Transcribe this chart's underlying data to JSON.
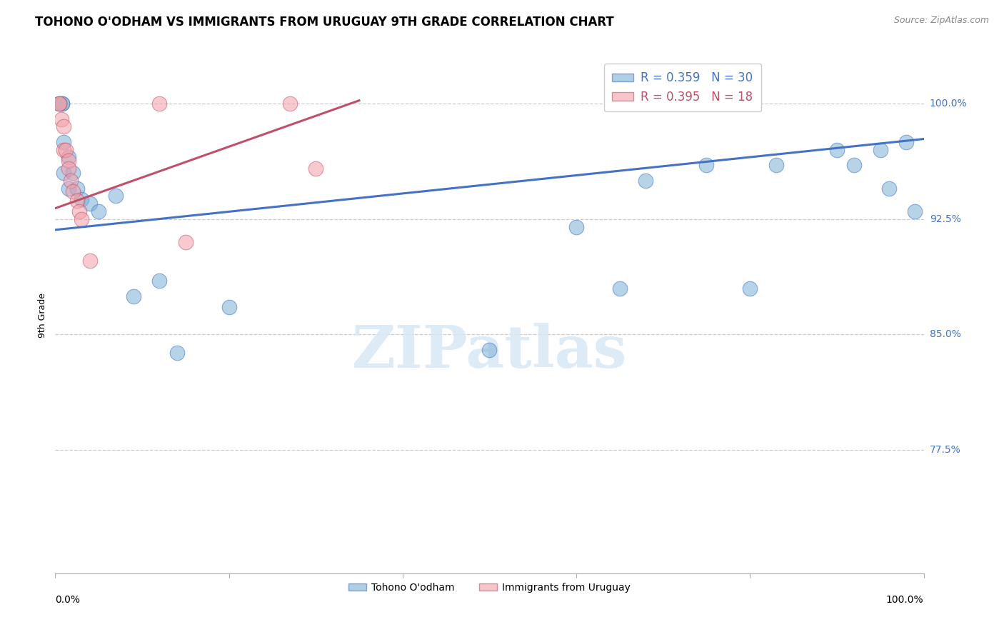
{
  "title": "TOHONO O'ODHAM VS IMMIGRANTS FROM URUGUAY 9TH GRADE CORRELATION CHART",
  "source": "Source: ZipAtlas.com",
  "ylabel": "9th Grade",
  "ytick_labels": [
    "77.5%",
    "85.0%",
    "92.5%",
    "100.0%"
  ],
  "ytick_values": [
    0.775,
    0.85,
    0.925,
    1.0
  ],
  "xlim": [
    0.0,
    1.0
  ],
  "ylim": [
    0.695,
    1.03
  ],
  "blue_color": "#7BAFD4",
  "pink_color": "#F4A0A8",
  "blue_line_color": "#4472C4",
  "pink_line_color": "#C0506A",
  "legend_blue_r": 0.359,
  "legend_blue_n": 30,
  "legend_pink_r": 0.395,
  "legend_pink_n": 18,
  "tohono_x": [
    0.005,
    0.008,
    0.008,
    0.01,
    0.01,
    0.015,
    0.015,
    0.02,
    0.025,
    0.03,
    0.04,
    0.05,
    0.07,
    0.09,
    0.12,
    0.14,
    0.2,
    0.5,
    0.6,
    0.65,
    0.68,
    0.75,
    0.8,
    0.83,
    0.9,
    0.92,
    0.95,
    0.96,
    0.98,
    0.99
  ],
  "tohono_y": [
    1.0,
    1.0,
    1.0,
    0.975,
    0.955,
    0.965,
    0.945,
    0.955,
    0.945,
    0.938,
    0.935,
    0.93,
    0.94,
    0.875,
    0.885,
    0.838,
    0.868,
    0.84,
    0.92,
    0.88,
    0.95,
    0.96,
    0.88,
    0.96,
    0.97,
    0.96,
    0.97,
    0.945,
    0.975,
    0.93
  ],
  "uruguay_x": [
    0.005,
    0.005,
    0.007,
    0.01,
    0.01,
    0.012,
    0.015,
    0.015,
    0.018,
    0.02,
    0.025,
    0.028,
    0.03,
    0.04,
    0.12,
    0.15,
    0.27,
    0.3
  ],
  "uruguay_y": [
    1.0,
    1.0,
    0.99,
    0.985,
    0.97,
    0.97,
    0.963,
    0.958,
    0.95,
    0.943,
    0.937,
    0.93,
    0.925,
    0.898,
    1.0,
    0.91,
    1.0,
    0.958
  ],
  "blue_trend_x0": 0.0,
  "blue_trend_x1": 1.0,
  "blue_trend_y0": 0.918,
  "blue_trend_y1": 0.977,
  "pink_trend_x0": 0.0,
  "pink_trend_x1": 0.35,
  "pink_trend_y0": 0.932,
  "pink_trend_y1": 1.002,
  "grid_color": "#CCCCCC",
  "background_color": "#FFFFFF",
  "title_fontsize": 12,
  "axis_label_fontsize": 9,
  "tick_fontsize": 10,
  "legend_fontsize": 12,
  "source_fontsize": 9,
  "bottom_legend_label_blue": "Tohono O'odham",
  "bottom_legend_label_pink": "Immigrants from Uruguay"
}
